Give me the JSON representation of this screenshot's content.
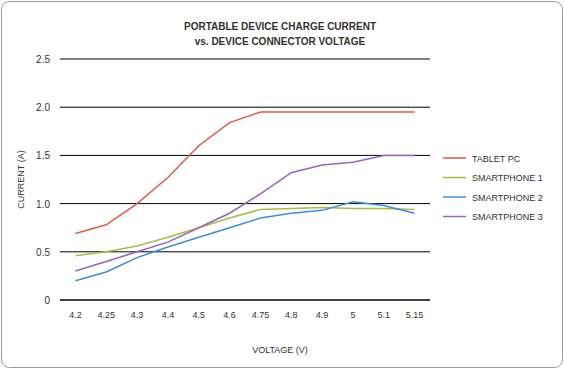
{
  "chart_data": {
    "type": "line",
    "title": "PORTABLE DEVICE CHARGE CURRENT",
    "subtitle": "vs. DEVICE CONNECTOR VOLTAGE",
    "x_label": "VOLTAGE (V)",
    "y_label": "CURRENT (A)",
    "categories": [
      "4.2",
      "4.25",
      "4.3",
      "4.4",
      "4.5",
      "4.6",
      "4.75",
      "4.8",
      "4.9",
      "5",
      "5.1",
      "5.15"
    ],
    "series": [
      {
        "name": "TABLET PC",
        "color": "#e0584c",
        "values": [
          0.69,
          0.78,
          1.0,
          1.27,
          1.6,
          1.84,
          1.95,
          1.95,
          1.95,
          1.95,
          1.95,
          1.95
        ]
      },
      {
        "name": "SMARTPHONE 1",
        "color": "#a9b94c",
        "values": [
          0.46,
          0.5,
          0.56,
          0.65,
          0.75,
          0.85,
          0.94,
          0.95,
          0.96,
          0.95,
          0.95,
          0.94
        ]
      },
      {
        "name": "SMARTPHONE 2",
        "color": "#3d8fd1",
        "values": [
          0.2,
          0.29,
          0.44,
          0.55,
          0.65,
          0.75,
          0.85,
          0.9,
          0.93,
          1.02,
          0.98,
          0.9
        ]
      },
      {
        "name": "SMARTPHONE 3",
        "color": "#9b62b5",
        "values": [
          0.3,
          0.4,
          0.5,
          0.6,
          0.75,
          0.9,
          1.1,
          1.32,
          1.4,
          1.43,
          1.5,
          1.5
        ]
      }
    ],
    "ylim": [
      0,
      2.5
    ],
    "yticks": [
      0,
      0.5,
      {
        "value": 1,
        "label": "1.0"
      },
      1.5,
      {
        "value": 2,
        "label": "2.0"
      },
      2.5
    ],
    "grid": true,
    "legend": "right"
  }
}
